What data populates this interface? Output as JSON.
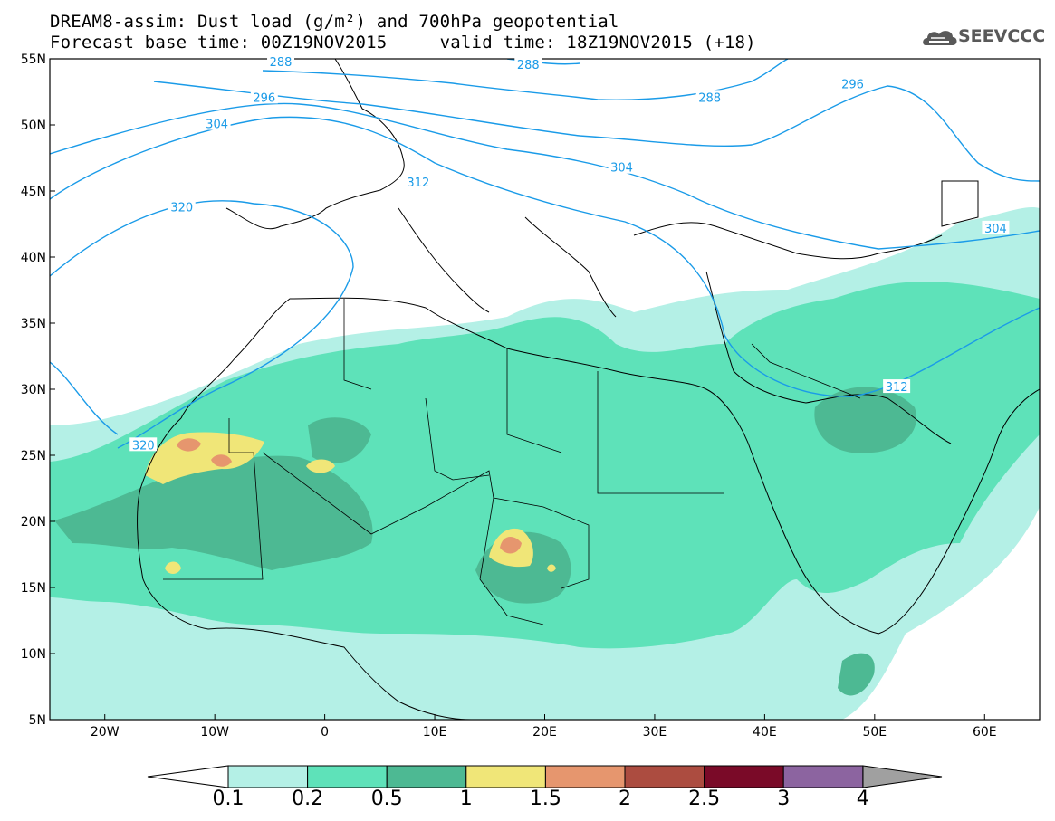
{
  "header": {
    "title_line1": "DREAM8-assim: Dust load (g/m²) and 700hPa geopotential",
    "title_line2": "Forecast base time: 00Z19NOV2015     valid time: 18Z19NOV2015 (+18)",
    "logo_text": "SEEVCCC"
  },
  "map": {
    "lon_range": [
      -25,
      65
    ],
    "lat_range": [
      5,
      55
    ],
    "lat_ticks": [
      {
        "value": 55,
        "label": "55N"
      },
      {
        "value": 50,
        "label": "50N"
      },
      {
        "value": 45,
        "label": "45N"
      },
      {
        "value": 40,
        "label": "40N"
      },
      {
        "value": 35,
        "label": "35N"
      },
      {
        "value": 30,
        "label": "30N"
      },
      {
        "value": 25,
        "label": "25N"
      },
      {
        "value": 20,
        "label": "20N"
      },
      {
        "value": 15,
        "label": "15N"
      },
      {
        "value": 10,
        "label": "10N"
      },
      {
        "value": 5,
        "label": "5N"
      }
    ],
    "lon_ticks": [
      {
        "value": -20,
        "label": "20W"
      },
      {
        "value": -10,
        "label": "10W"
      },
      {
        "value": 0,
        "label": "0"
      },
      {
        "value": 10,
        "label": "10E"
      },
      {
        "value": 20,
        "label": "20E"
      },
      {
        "value": 30,
        "label": "30E"
      },
      {
        "value": 40,
        "label": "40E"
      },
      {
        "value": 50,
        "label": "50E"
      },
      {
        "value": 60,
        "label": "60E"
      }
    ],
    "contour_labels": [
      {
        "text": "288",
        "lon": -4,
        "lat": 54.8
      },
      {
        "text": "288",
        "lon": 18.5,
        "lat": 54.6
      },
      {
        "text": "296",
        "lon": -5.5,
        "lat": 52.1
      },
      {
        "text": "288",
        "lon": 35,
        "lat": 52.1
      },
      {
        "text": "296",
        "lon": 48,
        "lat": 53.1
      },
      {
        "text": "304",
        "lon": -9.8,
        "lat": 50.1
      },
      {
        "text": "304",
        "lon": 27,
        "lat": 46.8
      },
      {
        "text": "312",
        "lon": 8.5,
        "lat": 45.7
      },
      {
        "text": "304",
        "lon": 61,
        "lat": 42.2
      },
      {
        "text": "320",
        "lon": -13,
        "lat": 43.8
      },
      {
        "text": "312",
        "lon": 52,
        "lat": 30.2
      },
      {
        "text": "320",
        "lon": -16.5,
        "lat": 25.8
      }
    ],
    "colors": {
      "contour": "#1a9be8",
      "coast": "#000000",
      "levels": [
        "#b4f0e6",
        "#5ee2b9",
        "#4db993",
        "#f0e678",
        "#e6966e",
        "#ac4c40",
        "#7a0a28",
        "#8c64a0",
        "#a0a0a0"
      ]
    }
  },
  "colorbar": {
    "labels": [
      "0.1",
      "0.2",
      "0.5",
      "1",
      "1.5",
      "2",
      "2.5",
      "3",
      "4"
    ]
  }
}
